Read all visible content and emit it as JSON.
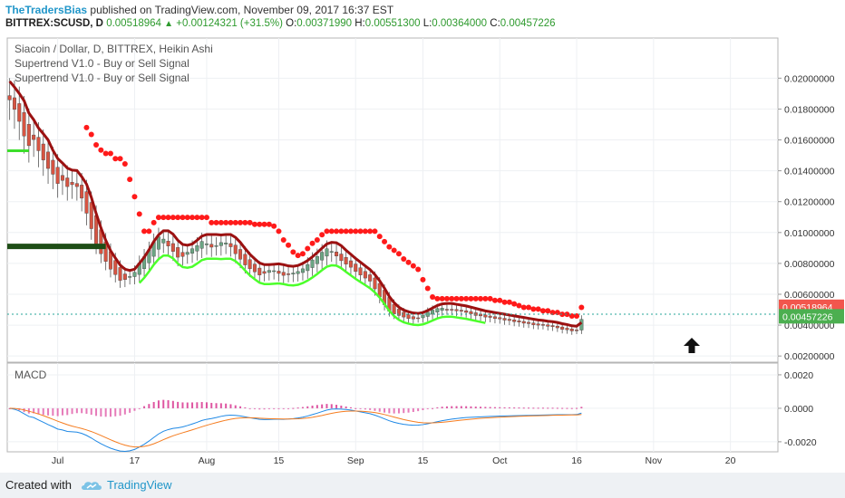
{
  "header": {
    "author": "TheTradersBias",
    "published_text": "published on TradingView.com, November 09, 2017 16:37 EST",
    "symbol": "BITTREX:SCUSD, D",
    "last": "0.00518964",
    "change": "+0.00124321 (+31.5%)",
    "o_label": "O:",
    "o_value": "0.00371990",
    "h_label": "H:",
    "h_value": "0.00551300",
    "l_label": "L:",
    "l_value": "0.00364000",
    "c_label": "C:",
    "c_value": "0.00457226"
  },
  "legend": {
    "main": "Siacoin / Dollar, D, BITTREX, Heikin Ashi",
    "indicator1": "Supertrend V1.0 - Buy or Sell Signal",
    "indicator2": "Supertrend V1.0 - Buy or Sell Signal",
    "macd": "MACD"
  },
  "footer": {
    "created_with": "Created with",
    "brand": "TradingView"
  },
  "chart_data": [
    {
      "type": "candlestick",
      "title": "Siacoin / Dollar, D, BITTREX, Heikin Ashi",
      "y_ticks": [
        "0.02000000",
        "0.01800000",
        "0.01600000",
        "0.01400000",
        "0.01200000",
        "0.01000000",
        "0.00800000",
        "0.00600000",
        "0.00400000",
        "0.00200000"
      ],
      "ylim": [
        0.0016,
        0.0226
      ],
      "x_ticks": [
        "Jul",
        "17",
        "Aug",
        "15",
        "Sep",
        "15",
        "Oct",
        "16",
        "Nov",
        "20"
      ],
      "x_tick_days": [
        10,
        26,
        41,
        56,
        72,
        86,
        102,
        118,
        134,
        150
      ],
      "price_labels": [
        {
          "value": "0.00518964",
          "color": "#f2564d"
        },
        {
          "value": "0.00457226",
          "color": "#4caf50"
        }
      ],
      "current_price": 0.00457,
      "close": [
        0.0185,
        0.0178,
        0.017,
        0.016,
        0.0155,
        0.0162,
        0.015,
        0.0146,
        0.014,
        0.0137,
        0.013,
        0.0135,
        0.0128,
        0.0132,
        0.0129,
        0.012,
        0.011,
        0.01,
        0.009,
        0.0085,
        0.008,
        0.0075,
        0.0072,
        0.0068,
        0.007,
        0.0072,
        0.0075,
        0.0082,
        0.0085,
        0.009,
        0.0095,
        0.0098,
        0.0095,
        0.009,
        0.0087,
        0.0083,
        0.0085,
        0.0088,
        0.009,
        0.0092,
        0.0095,
        0.0092,
        0.009,
        0.0092,
        0.0094,
        0.0093,
        0.009,
        0.0085,
        0.0082,
        0.0078,
        0.0076,
        0.0074,
        0.0072,
        0.0074,
        0.0076,
        0.0075,
        0.0073,
        0.0072,
        0.0073,
        0.0074,
        0.0075,
        0.0077,
        0.008,
        0.0083,
        0.0085,
        0.0088,
        0.009,
        0.0087,
        0.0084,
        0.0081,
        0.0079,
        0.0077,
        0.0074,
        0.0072,
        0.007,
        0.0068,
        0.0062,
        0.0057,
        0.0052,
        0.0048,
        0.0047,
        0.0046,
        0.0045,
        0.0044,
        0.0044,
        0.0045,
        0.0047,
        0.0049,
        0.005,
        0.0051,
        0.0051,
        0.005,
        0.005,
        0.0049,
        0.0049,
        0.0048,
        0.0047,
        0.0046,
        0.0046,
        0.0045,
        0.0045,
        0.0044,
        0.0044,
        0.0043,
        0.0043,
        0.0042,
        0.0042,
        0.0041,
        0.0041,
        0.004,
        0.004,
        0.004,
        0.0039,
        0.0039,
        0.0038,
        0.0037,
        0.0037,
        0.0036,
        0.0037,
        0.0046
      ],
      "supertrend_sell_dots_start_day": 16,
      "supertrend_buy_line_start_day": 27
    },
    {
      "type": "macd",
      "title": "MACD",
      "y_ticks": [
        "0.0020",
        "0.0000",
        "-0.0020"
      ],
      "ylim": [
        -0.0026,
        0.0027
      ]
    }
  ]
}
